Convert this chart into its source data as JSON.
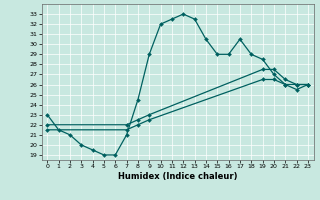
{
  "xlabel": "Humidex (Indice chaleur)",
  "xlim": [
    -0.5,
    23.5
  ],
  "ylim": [
    18.5,
    34.0
  ],
  "yticks": [
    19,
    20,
    21,
    22,
    23,
    24,
    25,
    26,
    27,
    28,
    29,
    30,
    31,
    32,
    33
  ],
  "xticks": [
    0,
    1,
    2,
    3,
    4,
    5,
    6,
    7,
    8,
    9,
    10,
    11,
    12,
    13,
    14,
    15,
    16,
    17,
    18,
    19,
    20,
    21,
    22,
    23
  ],
  "bg_color": "#c8e8e0",
  "grid_color": "#aaaaaa",
  "line_color": "#006060",
  "line_width": 0.9,
  "marker_size": 2.0,
  "series": [
    {
      "x": [
        0,
        1,
        2,
        3,
        4,
        5,
        6,
        7,
        8,
        9,
        10,
        11,
        12,
        13,
        14,
        15,
        16,
        17,
        18,
        19,
        20,
        21,
        22,
        23
      ],
      "y": [
        23,
        21.5,
        21,
        20,
        19.5,
        19,
        19,
        21,
        24.5,
        29,
        32,
        32.5,
        33,
        32.5,
        30.5,
        29,
        29,
        30.5,
        29,
        28.5,
        27,
        26,
        26,
        26
      ]
    },
    {
      "x": [
        0,
        7,
        8,
        9,
        19,
        20,
        21,
        22,
        23
      ],
      "y": [
        22,
        22,
        22.5,
        23,
        27.5,
        27.5,
        26.5,
        26,
        26
      ]
    },
    {
      "x": [
        0,
        7,
        8,
        9,
        19,
        20,
        21,
        22,
        23
      ],
      "y": [
        21.5,
        21.5,
        22,
        22.5,
        26.5,
        26.5,
        26,
        25.5,
        26
      ]
    }
  ]
}
